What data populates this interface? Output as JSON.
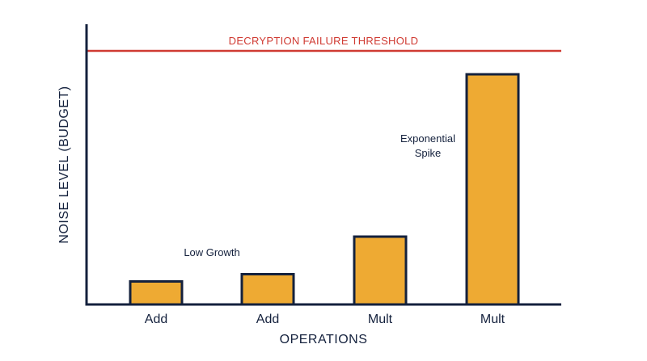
{
  "chart_data": {
    "type": "bar",
    "categories": [
      "Add",
      "Add",
      "Mult",
      "Mult"
    ],
    "values": [
      9.5,
      12.5,
      28,
      95
    ],
    "xlabel": "OPERATIONS",
    "ylabel": "NOISE LEVEL (BUDGET)",
    "ylim": [
      0,
      100
    ],
    "grid": false,
    "threshold": {
      "label": "DECRYPTION FAILURE THRESHOLD",
      "value": 100
    },
    "annotations": [
      {
        "text": "Low Growth",
        "near_category": 1
      },
      {
        "text": "Exponential",
        "near_category": 3
      },
      {
        "text": "Spike",
        "near_category": 3
      }
    ],
    "colors": {
      "bar_fill": "#eeaa33",
      "bar_stroke": "#14213d",
      "axis": "#14213d",
      "threshold": "#d03a32"
    }
  }
}
